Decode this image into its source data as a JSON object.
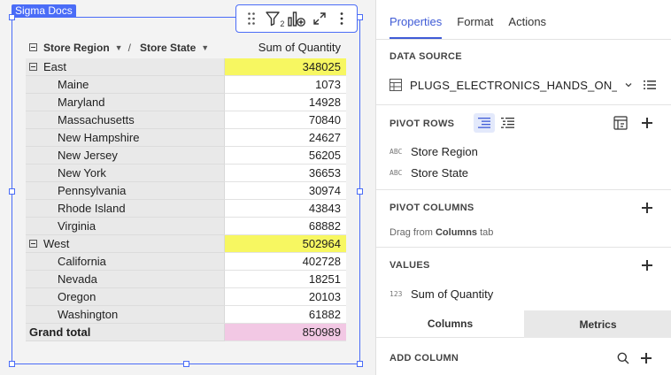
{
  "canvas": {
    "doc_tag": "Sigma Docs",
    "toolbar_icons": [
      "drag-handle-icon",
      "filter-icon",
      "add-chart-icon",
      "expand-icon",
      "more-icon"
    ],
    "filter_count": "2"
  },
  "pivot": {
    "row_header_1": "Store Region",
    "row_header_2": "Store State",
    "separator": "/",
    "value_header": "Sum of Quantity",
    "regions": [
      {
        "name": "East",
        "total": "348025",
        "states": [
          {
            "name": "Maine",
            "value": "1073"
          },
          {
            "name": "Maryland",
            "value": "14928"
          },
          {
            "name": "Massachusetts",
            "value": "70840"
          },
          {
            "name": "New Hampshire",
            "value": "24627"
          },
          {
            "name": "New Jersey",
            "value": "56205"
          },
          {
            "name": "New York",
            "value": "36653"
          },
          {
            "name": "Pennsylvania",
            "value": "30974"
          },
          {
            "name": "Rhode Island",
            "value": "43843"
          },
          {
            "name": "Virginia",
            "value": "68882"
          }
        ]
      },
      {
        "name": "West",
        "total": "502964",
        "states": [
          {
            "name": "California",
            "value": "402728"
          },
          {
            "name": "Nevada",
            "value": "18251"
          },
          {
            "name": "Oregon",
            "value": "20103"
          },
          {
            "name": "Washington",
            "value": "61882"
          }
        ]
      }
    ],
    "grand_total_label": "Grand total",
    "grand_total": "850989",
    "colors": {
      "region_highlight": "#f7f761",
      "total_highlight": "#f2c8e4"
    }
  },
  "panel": {
    "tabs": [
      {
        "label": "Properties",
        "active": true
      },
      {
        "label": "Format",
        "active": false
      },
      {
        "label": "Actions",
        "active": false
      }
    ],
    "data_source": {
      "title": "DATA SOURCE",
      "name": "PLUGS_ELECTRONICS_HANDS_ON_L..."
    },
    "pivot_rows": {
      "title": "PIVOT ROWS",
      "fields": [
        {
          "type": "ABC",
          "name": "Store Region"
        },
        {
          "type": "ABC",
          "name": "Store State"
        }
      ]
    },
    "pivot_columns": {
      "title": "PIVOT COLUMNS",
      "hint_prefix": "Drag from ",
      "hint_bold": "Columns",
      "hint_suffix": " tab"
    },
    "values": {
      "title": "VALUES",
      "fields": [
        {
          "type": "123",
          "name": "Sum of Quantity"
        }
      ]
    },
    "bottom_tabs": [
      {
        "label": "Columns",
        "active": true
      },
      {
        "label": "Metrics",
        "active": false
      }
    ],
    "add_column": {
      "title": "ADD COLUMN"
    },
    "accent": "#3f5bd6"
  }
}
